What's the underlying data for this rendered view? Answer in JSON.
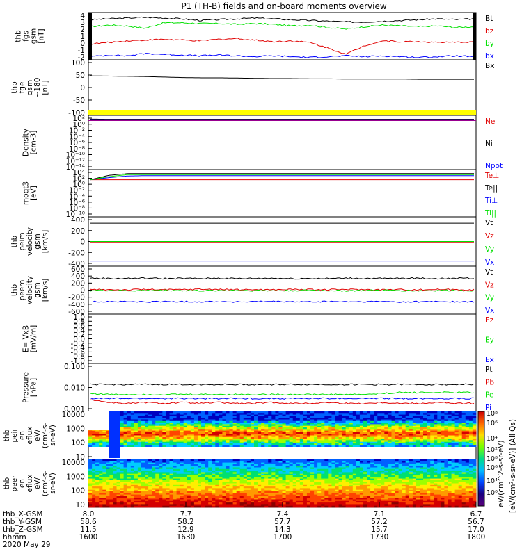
{
  "title": "P1  (TH-B) fields and on-board moments overview",
  "colors": {
    "black": "#000000",
    "red": "#e00000",
    "green": "#00e000",
    "blue": "#0000ff",
    "yellow": "#ffff00",
    "magenta": "#9a0090"
  },
  "chart_data": [
    {
      "type": "line",
      "panel": "fgs-gsm",
      "ylabel": [
        "thb",
        "fgs",
        "gsm",
        "[nT]"
      ],
      "y_ticks": [
        "4",
        "3",
        "2",
        "1",
        "0",
        "-1",
        "-2"
      ],
      "ylim": [
        -2,
        4
      ],
      "series": [
        {
          "name": "Bt",
          "color": "black",
          "values": [
            3.1,
            3.2,
            3.3,
            3.4,
            3.3,
            3.2,
            3.0,
            3.1,
            3.2,
            3.3,
            3.2,
            3.1,
            3.0,
            2.9,
            2.8,
            2.8,
            2.9,
            3.0,
            3.1,
            3.2,
            3.1,
            3.2
          ]
        },
        {
          "name": "bz",
          "color": "red",
          "values": [
            0.0,
            0.2,
            0.4,
            0.5,
            0.6,
            0.5,
            0.4,
            0.6,
            0.7,
            0.5,
            0.3,
            0.4,
            0.2,
            -0.5,
            -1.3,
            -0.2,
            0.4,
            0.3,
            0.3,
            0.2,
            0.2,
            0.3
          ]
        },
        {
          "name": "by",
          "color": "green",
          "values": [
            2.2,
            2.4,
            2.3,
            2.0,
            2.7,
            2.7,
            2.6,
            2.6,
            2.5,
            2.6,
            2.5,
            2.3,
            2.4,
            2.1,
            1.9,
            2.2,
            2.4,
            2.3,
            2.2,
            2.3,
            2.1,
            2.2
          ]
        },
        {
          "name": "bx",
          "color": "blue",
          "values": [
            -1.6,
            -1.4,
            -1.5,
            -1.2,
            -1.3,
            -1.4,
            -1.5,
            -1.4,
            -1.5,
            -1.6,
            -1.5,
            -1.6,
            -1.7,
            -1.6,
            -1.5,
            -1.6,
            -1.5,
            -1.6,
            -1.7,
            -1.6,
            -1.5,
            -1.6
          ]
        }
      ]
    },
    {
      "type": "line",
      "panel": "fge-gsm-180",
      "ylabel": [
        "thb",
        "fge",
        "gsm",
        "~180",
        "[nT]"
      ],
      "y_ticks": [
        "100",
        "50",
        "0",
        "-50",
        "-100"
      ],
      "ylim": [
        -125,
        100
      ],
      "series": [
        {
          "name": "Bx",
          "color": "black",
          "values": [
            35,
            34,
            33,
            32,
            30,
            28,
            27,
            27,
            26,
            25,
            24,
            24,
            23,
            23,
            22,
            22,
            22,
            22,
            21,
            21,
            21,
            21
          ]
        }
      ]
    },
    {
      "type": "line",
      "panel": "density",
      "ylabel": [
        "Density",
        "[cm-3]"
      ],
      "y_ticks": [
        "10²",
        "10⁰",
        "10⁻²",
        "10⁻⁴",
        "10⁻⁶",
        "10⁻⁸",
        "10⁻¹⁰",
        "10⁻¹²",
        "10⁻¹⁴"
      ],
      "ylim": [
        -14,
        2
      ],
      "log_scale": true,
      "series": [
        {
          "name": "Ne",
          "color": "red",
          "values": [
            0.85,
            0.8,
            0.8,
            0.8,
            0.8,
            0.8,
            0.8,
            0.8,
            0.8,
            0.8,
            0.8,
            0.8,
            0.8,
            0.8,
            0.8,
            0.8,
            0.8,
            0.8,
            0.8,
            0.8,
            0.8,
            0.8
          ]
        },
        {
          "name": "Ni",
          "color": "black",
          "values": [
            0.9,
            0.85,
            0.85,
            0.85,
            0.85,
            0.85,
            0.85,
            0.85,
            0.85,
            0.85,
            0.85,
            0.85,
            0.85,
            0.85,
            0.85,
            0.85,
            0.85,
            0.85,
            0.85,
            0.85,
            0.85,
            0.85
          ]
        },
        {
          "name": "Npot",
          "color": "blue",
          "values": [
            0.75,
            0.7,
            0.7,
            0.7,
            0.7,
            0.7,
            0.7,
            0.7,
            0.7,
            0.7,
            0.7,
            0.7,
            0.7,
            0.7,
            0.7,
            0.7,
            0.7,
            0.7,
            0.7,
            0.7,
            0.7,
            0.7
          ]
        }
      ]
    },
    {
      "type": "line",
      "panel": "temperature",
      "ylabel": [
        "moqt3",
        "[eV]"
      ],
      "y_ticks": [
        "10⁴",
        "10²",
        "10⁰",
        "10⁻²",
        "10⁻⁴",
        "10⁻⁶",
        "10⁻⁸",
        "10⁻¹⁰"
      ],
      "ylim": [
        -10,
        4
      ],
      "log_scale": true,
      "series": [
        {
          "name": "Te⊥",
          "color": "red",
          "values": [
            1.0,
            1.0,
            1.0,
            1.0,
            1.0,
            1.0,
            1.0,
            1.0,
            1.0,
            1.0,
            1.0,
            1.0,
            1.0,
            1.0,
            1.0,
            1.0,
            1.0,
            1.0,
            1.0,
            1.0,
            1.0,
            1.0
          ]
        },
        {
          "name": "Te||",
          "color": "black",
          "values": [
            1.0,
            2.3,
            2.8,
            2.8,
            2.8,
            2.8,
            2.8,
            2.8,
            2.8,
            2.8,
            2.8,
            2.8,
            2.8,
            2.8,
            2.8,
            2.8,
            2.8,
            2.8,
            2.8,
            2.8,
            2.8,
            2.8
          ]
        },
        {
          "name": "Ti⊥",
          "color": "blue",
          "values": [
            1.0,
            1.6,
            2.1,
            2.2,
            2.2,
            2.2,
            2.2,
            2.2,
            2.2,
            2.2,
            2.2,
            2.2,
            2.2,
            2.2,
            2.2,
            2.2,
            2.2,
            2.2,
            2.2,
            2.2,
            2.2,
            2.2
          ]
        },
        {
          "name": "Ti||",
          "color": "green",
          "values": [
            1.0,
            1.9,
            2.5,
            2.5,
            2.5,
            2.5,
            2.5,
            2.5,
            2.5,
            2.5,
            2.5,
            2.5,
            2.5,
            2.5,
            2.5,
            2.5,
            2.5,
            2.5,
            2.5,
            2.5,
            2.5,
            2.5
          ]
        }
      ]
    },
    {
      "type": "line",
      "panel": "peim-velocity",
      "ylabel": [
        "thb",
        "peim",
        "velocity",
        "gsm",
        "[km/s]"
      ],
      "y_ticks": [
        "400",
        "200",
        "0",
        "-200",
        "-400"
      ],
      "ylim": [
        -420,
        440
      ],
      "series": [
        {
          "name": "Vt",
          "color": "black",
          "values": [
            330,
            330,
            330,
            330,
            330,
            330,
            330,
            330,
            330,
            330,
            330,
            330,
            330,
            330,
            330,
            330,
            330,
            330,
            330,
            330,
            330,
            330
          ]
        },
        {
          "name": "Vz",
          "color": "red",
          "values": [
            0,
            0,
            0,
            0,
            0,
            0,
            0,
            0,
            0,
            0,
            0,
            0,
            0,
            0,
            0,
            0,
            0,
            0,
            0,
            0,
            0,
            0
          ]
        },
        {
          "name": "Vy",
          "color": "green",
          "values": [
            10,
            10,
            10,
            10,
            10,
            10,
            10,
            10,
            10,
            10,
            10,
            10,
            10,
            10,
            10,
            10,
            10,
            10,
            10,
            10,
            10,
            10
          ]
        },
        {
          "name": "Vx",
          "color": "blue",
          "values": [
            -330,
            -330,
            -330,
            -330,
            -330,
            -330,
            -330,
            -330,
            -330,
            -330,
            -330,
            -330,
            -330,
            -330,
            -330,
            -330,
            -330,
            -330,
            -330,
            -330,
            -330,
            -330
          ]
        }
      ]
    },
    {
      "type": "line",
      "panel": "peem-velocity",
      "ylabel": [
        "thb",
        "peem",
        "velocity",
        "gsm",
        "[km/s]"
      ],
      "y_ticks": [
        "600",
        "400",
        "200",
        "0",
        "-200",
        "-400",
        "-600"
      ],
      "ylim": [
        -600,
        600
      ],
      "series": [
        {
          "name": "Vt",
          "color": "black",
          "values": [
            300,
            290,
            295,
            300,
            290,
            295,
            290,
            300,
            290,
            295,
            300,
            290,
            295,
            290,
            300,
            295,
            290,
            295,
            300,
            290,
            295,
            300
          ]
        },
        {
          "name": "Vz",
          "color": "red",
          "values": [
            10,
            15,
            10,
            20,
            10,
            15,
            25,
            20,
            10,
            15,
            10,
            20,
            15,
            10,
            20,
            15,
            10,
            15,
            10,
            20,
            15,
            10
          ]
        },
        {
          "name": "Vy",
          "color": "green",
          "values": [
            -10,
            -5,
            -15,
            -10,
            -5,
            -10,
            -15,
            -10,
            -5,
            -10,
            -15,
            -10,
            -5,
            -10,
            -15,
            -10,
            -5,
            -10,
            -15,
            -10,
            -5,
            -10
          ]
        },
        {
          "name": "Vx",
          "color": "blue",
          "values": [
            -290,
            -285,
            -290,
            -295,
            -285,
            -290,
            -290,
            -285,
            -295,
            -290,
            -285,
            -290,
            -295,
            -285,
            -290,
            -290,
            -285,
            -295,
            -290,
            -285,
            -290,
            -295
          ]
        }
      ]
    },
    {
      "type": "line",
      "panel": "efield",
      "ylabel": [
        "E=-VxB",
        "[mV/m]"
      ],
      "y_ticks": [
        "1.0",
        "0.8",
        "0.6",
        "0.4",
        "0.2",
        "0.0",
        "-0.2",
        "-0.4",
        "-0.6",
        "-0.8",
        "-1.0"
      ],
      "ylim": [
        -1.0,
        1.0
      ],
      "series": [
        {
          "name": "Ez",
          "color": "red",
          "values": []
        },
        {
          "name": "Ey",
          "color": "green",
          "values": []
        },
        {
          "name": "Ex",
          "color": "blue",
          "values": []
        }
      ]
    },
    {
      "type": "line",
      "panel": "pressure",
      "ylabel": [
        "Pressure",
        "[nPa]"
      ],
      "y_ticks": [
        "0.100",
        "0.010",
        "0.001"
      ],
      "ylim": [
        -3,
        -0.6
      ],
      "log_scale": true,
      "series": [
        {
          "name": "Pt",
          "color": "black",
          "values": [
            -1.65,
            -1.65,
            -1.65,
            -1.65,
            -1.65,
            -1.65,
            -1.65,
            -1.65,
            -1.65,
            -1.65,
            -1.65,
            -1.65,
            -1.65,
            -1.65,
            -1.65,
            -1.65,
            -1.65,
            -1.65,
            -1.65,
            -1.65,
            -1.65,
            -1.65
          ]
        },
        {
          "name": "Pb",
          "color": "red",
          "values": [
            -2.4,
            -2.55,
            -2.6,
            -2.55,
            -2.6,
            -2.55,
            -2.6,
            -2.55,
            -2.6,
            -2.6,
            -2.55,
            -2.6,
            -2.6,
            -2.55,
            -2.6,
            -2.6,
            -2.55,
            -2.6,
            -2.6,
            -2.55,
            -2.6,
            -2.6
          ]
        },
        {
          "name": "Pe",
          "color": "green",
          "values": [
            -2.1,
            -2.15,
            -2.15,
            -2.15,
            -2.15,
            -2.15,
            -2.15,
            -2.15,
            -2.15,
            -2.15,
            -2.15,
            -2.15,
            -2.15,
            -2.15,
            -2.15,
            -2.15,
            -2.1,
            -2.05,
            -2.05,
            -2.05,
            -2.05,
            -2.05
          ]
        },
        {
          "name": "Pi",
          "color": "blue",
          "values": [
            -2.35,
            -2.35,
            -2.35,
            -2.35,
            -2.35,
            -2.35,
            -2.35,
            -2.35,
            -2.35,
            -2.35,
            -2.35,
            -2.35,
            -2.35,
            -2.35,
            -2.35,
            -2.35,
            -2.35,
            -2.35,
            -2.35,
            -2.35,
            -2.35,
            -2.35
          ]
        }
      ]
    },
    {
      "type": "heatmap",
      "panel": "peir-eflux",
      "ylabel": [
        "thb",
        "peir",
        "en",
        "eflux",
        "eV/",
        "(cm²-s-",
        "sr-eV)"
      ],
      "y_ticks": [
        "10000",
        "1000",
        "100",
        "10"
      ],
      "ylim": [
        1,
        4.25
      ],
      "log_scale": true
    },
    {
      "type": "heatmap",
      "panel": "peer-eflux",
      "ylabel": [
        "thb",
        "peer",
        "en",
        "eflux",
        "eV/",
        "(cm²-s-",
        "sr-eV)"
      ],
      "y_ticks": [
        "10000",
        "1000",
        "100",
        "10"
      ],
      "ylim": [
        0.9,
        4.25
      ],
      "log_scale": true
    }
  ],
  "colorbar": {
    "ticks": [
      "10⁸",
      "10⁶",
      "10⁴",
      "10²",
      "10⁰"
    ],
    "title": "[eV/(cm²-s-sr-eV)] (All Qs)",
    "overlay_title": "eV/(cm^2-s-sr-eV)"
  },
  "x_axis": {
    "rows": [
      {
        "label": "thb_X-GSM",
        "values": [
          "8.0",
          "7.7",
          "7.4",
          "7.1",
          "6.7"
        ]
      },
      {
        "label": "thb_Y-GSM",
        "values": [
          "58.6",
          "58.2",
          "57.7",
          "57.2",
          "56.7"
        ]
      },
      {
        "label": "thb_Z-GSM",
        "values": [
          "11.5",
          "12.9",
          "14.3",
          "15.7",
          "17.0"
        ]
      },
      {
        "label": "hhmm",
        "values": [
          "1600",
          "1630",
          "1700",
          "1730",
          "1800"
        ]
      }
    ],
    "date": "2020 May 29"
  }
}
